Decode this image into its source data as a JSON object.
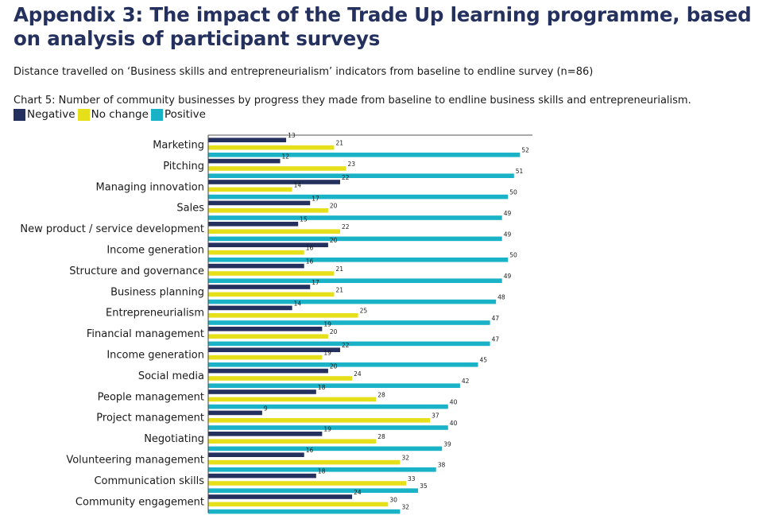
{
  "page": {
    "title": "Appendix 3: The impact of the Trade Up learning programme, based on analysis of participant surveys",
    "subtitle": "Distance travelled on ‘Business skills and entrepreneurialism’ indicators from baseline to endline survey (n=86)"
  },
  "chart_data": {
    "type": "bar",
    "orientation": "horizontal",
    "title": "Chart 5: Number of community businesses by progress they made from baseline to endline business skills and entrepreneurialism.",
    "xlabel": "",
    "ylabel": "",
    "xlim": [
      0,
      55
    ],
    "grid": false,
    "legend_position": "top-left",
    "categories": [
      "Marketing",
      "Pitching",
      "Managing innovation",
      "Sales",
      "New product / service development",
      "Income generation",
      "Structure and governance",
      "Business planning",
      "Entrepreneurialism",
      "Financial management",
      "Income generation",
      "Social media",
      "People management",
      "Project management",
      "Negotiating",
      "Volunteering management",
      "Communication skills",
      "Community engagement"
    ],
    "series": [
      {
        "name": "Negative",
        "color": "#24305e",
        "values": [
          13,
          12,
          22,
          17,
          15,
          20,
          16,
          17,
          14,
          19,
          22,
          20,
          18,
          9,
          19,
          16,
          18,
          24
        ]
      },
      {
        "name": "No change",
        "color": "#e6e01a",
        "values": [
          21,
          23,
          14,
          20,
          22,
          16,
          21,
          21,
          25,
          20,
          19,
          24,
          28,
          37,
          28,
          32,
          33,
          30
        ]
      },
      {
        "name": "Positive",
        "color": "#1ab2c7",
        "values": [
          52,
          51,
          50,
          49,
          49,
          50,
          49,
          48,
          47,
          47,
          45,
          42,
          40,
          40,
          39,
          38,
          35,
          32
        ]
      }
    ]
  }
}
